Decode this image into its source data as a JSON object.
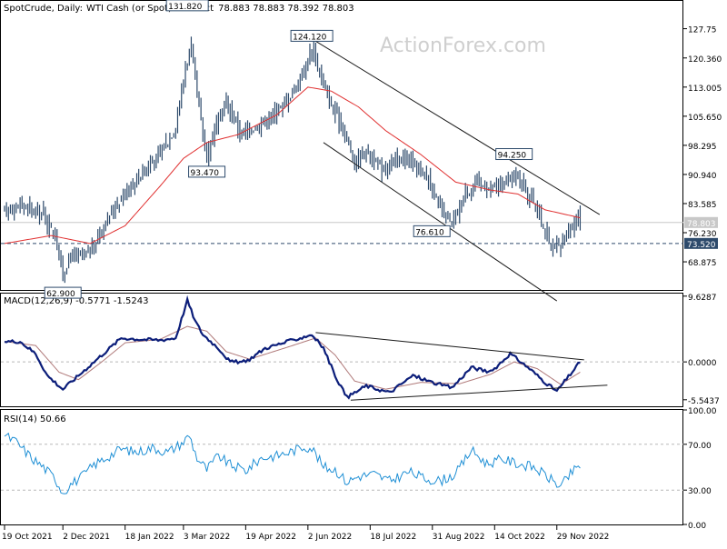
{
  "header": {
    "symbol": "SpotCrude, Daily:",
    "description": "WTI Cash (or Spot) Contract",
    "ohlc": "78.883 78.883 78.392 78.803"
  },
  "watermark": "ActionForex.com",
  "colors": {
    "price_bars": "#2d4a6b",
    "moving_average": "#e03030",
    "macd_line": "#0c1e7a",
    "signal_line": "#b07a7a",
    "rsi_line": "#1e8fd5",
    "grid": "#b8b8b8",
    "label_fill": "#2d4a6b"
  },
  "chart_data": [
    {
      "type": "line",
      "title": "SpotCrude, Daily: WTI Cash (or Spot) Contract",
      "x_dates": [
        "19 Oct 2021",
        "2 Dec 2021",
        "18 Jan 2022",
        "3 Mar 2022",
        "19 Apr 2022",
        "2 Jun 2022",
        "18 Jul 2022",
        "31 Aug 2022",
        "14 Oct 2022",
        "29 Nov 2022"
      ],
      "y_ticks": [
        "127.75",
        "120.360",
        "113.005",
        "105.650",
        "98.295",
        "90.940",
        "83.585",
        "76.230",
        "68.875"
      ],
      "ylim": [
        62.0,
        135.0
      ],
      "current_price": "78.803",
      "horizontal_level": "73.520",
      "price_labels": [
        {
          "text": "131.820",
          "price": 131.82,
          "date_index": 94
        },
        {
          "text": "124.120",
          "price": 124.12,
          "date_index": 158
        },
        {
          "text": "93.470",
          "price": 93.47,
          "date_index": 104
        },
        {
          "text": "94.250",
          "price": 94.25,
          "date_index": 262
        },
        {
          "text": "76.610",
          "price": 76.61,
          "date_index": 230
        },
        {
          "text": "62.900",
          "price": 62.9,
          "date_index": 30
        }
      ],
      "close_anchors": [
        [
          0,
          82
        ],
        [
          10,
          83
        ],
        [
          20,
          81
        ],
        [
          26,
          75
        ],
        [
          30,
          66
        ],
        [
          35,
          71
        ],
        [
          40,
          70
        ],
        [
          46,
          73
        ],
        [
          52,
          79
        ],
        [
          60,
          85
        ],
        [
          70,
          91
        ],
        [
          80,
          96
        ],
        [
          88,
          103
        ],
        [
          93,
          118
        ],
        [
          96,
          123
        ],
        [
          100,
          108
        ],
        [
          104,
          95
        ],
        [
          108,
          103
        ],
        [
          114,
          109
        ],
        [
          122,
          101
        ],
        [
          130,
          103
        ],
        [
          138,
          106
        ],
        [
          146,
          110
        ],
        [
          154,
          117
        ],
        [
          158,
          123
        ],
        [
          163,
          115
        ],
        [
          168,
          108
        ],
        [
          174,
          103
        ],
        [
          180,
          94
        ],
        [
          186,
          97
        ],
        [
          194,
          92
        ],
        [
          202,
          95
        ],
        [
          210,
          94
        ],
        [
          218,
          90
        ],
        [
          224,
          82
        ],
        [
          230,
          78
        ],
        [
          236,
          85
        ],
        [
          242,
          89
        ],
        [
          250,
          87
        ],
        [
          258,
          89
        ],
        [
          264,
          91
        ],
        [
          268,
          87
        ],
        [
          274,
          82
        ],
        [
          278,
          76
        ],
        [
          282,
          72
        ],
        [
          286,
          73
        ],
        [
          290,
          77
        ],
        [
          296,
          80
        ]
      ],
      "moving_average_anchors": [
        [
          0,
          73.5
        ],
        [
          24,
          75.5
        ],
        [
          44,
          73.5
        ],
        [
          62,
          78
        ],
        [
          80,
          88
        ],
        [
          92,
          95
        ],
        [
          104,
          99
        ],
        [
          120,
          101
        ],
        [
          140,
          106
        ],
        [
          156,
          113
        ],
        [
          168,
          112
        ],
        [
          182,
          108
        ],
        [
          196,
          102
        ],
        [
          214,
          96
        ],
        [
          232,
          89
        ],
        [
          250,
          87
        ],
        [
          264,
          86
        ],
        [
          278,
          82
        ],
        [
          296,
          80
        ]
      ],
      "channel_lines": [
        {
          "from": [
            158,
            125.2
          ],
          "to": [
            306,
            80.8
          ]
        },
        {
          "from": [
            164,
            99.0
          ],
          "to": [
            284,
            59.0
          ]
        }
      ]
    },
    {
      "type": "line",
      "title": "MACD(12,26,9) -0.5771 -1.5243",
      "y_ticks": [
        "9.6287",
        "0.0000",
        "-5.5437"
      ],
      "ylim": [
        -6.5,
        10.0
      ],
      "macd_anchors": [
        [
          0,
          3
        ],
        [
          8,
          3
        ],
        [
          16,
          1.2
        ],
        [
          22,
          -2
        ],
        [
          30,
          -4
        ],
        [
          38,
          -2
        ],
        [
          46,
          0
        ],
        [
          54,
          2
        ],
        [
          60,
          3.5
        ],
        [
          70,
          3.3
        ],
        [
          80,
          3.2
        ],
        [
          88,
          3.5
        ],
        [
          94,
          9
        ],
        [
          98,
          6
        ],
        [
          102,
          4
        ],
        [
          110,
          2
        ],
        [
          116,
          0
        ],
        [
          124,
          0
        ],
        [
          134,
          2
        ],
        [
          146,
          3
        ],
        [
          158,
          4
        ],
        [
          164,
          2
        ],
        [
          170,
          -2
        ],
        [
          176,
          -5.2
        ],
        [
          186,
          -3.5
        ],
        [
          198,
          -4.5
        ],
        [
          210,
          -2
        ],
        [
          220,
          -3
        ],
        [
          230,
          -3.8
        ],
        [
          240,
          -0.8
        ],
        [
          250,
          -1.5
        ],
        [
          260,
          1.2
        ],
        [
          270,
          -1
        ],
        [
          278,
          -3
        ],
        [
          284,
          -4.3
        ],
        [
          296,
          0
        ]
      ],
      "signal_anchors": [
        [
          0,
          3
        ],
        [
          16,
          2.4
        ],
        [
          28,
          -1.5
        ],
        [
          38,
          -2.6
        ],
        [
          50,
          0
        ],
        [
          62,
          2.8
        ],
        [
          80,
          3.3
        ],
        [
          94,
          5.2
        ],
        [
          104,
          4.5
        ],
        [
          114,
          1.5
        ],
        [
          126,
          0.4
        ],
        [
          146,
          2.2
        ],
        [
          160,
          3.5
        ],
        [
          170,
          1
        ],
        [
          180,
          -2.8
        ],
        [
          196,
          -4
        ],
        [
          214,
          -3
        ],
        [
          234,
          -3.2
        ],
        [
          250,
          -1.8
        ],
        [
          262,
          0
        ],
        [
          274,
          -1
        ],
        [
          286,
          -3.3
        ],
        [
          296,
          -1.5
        ]
      ],
      "trend_lines": [
        {
          "from": [
            160,
            4.3
          ],
          "to": [
            298,
            0.3
          ]
        },
        {
          "from": [
            178,
            -5.6
          ],
          "to": [
            310,
            -3.4
          ]
        }
      ]
    },
    {
      "type": "line",
      "title": "RSI(14) 50.66",
      "y_ticks": [
        "100.00",
        "70.00",
        "30.00",
        "0.00"
      ],
      "ylim": [
        0,
        100
      ],
      "levels": [
        70,
        30
      ],
      "rsi_anchors": [
        [
          0,
          78
        ],
        [
          6,
          72
        ],
        [
          14,
          58
        ],
        [
          20,
          50
        ],
        [
          26,
          40
        ],
        [
          30,
          28
        ],
        [
          34,
          35
        ],
        [
          40,
          42
        ],
        [
          46,
          52
        ],
        [
          54,
          60
        ],
        [
          60,
          66
        ],
        [
          68,
          63
        ],
        [
          76,
          67
        ],
        [
          84,
          63
        ],
        [
          92,
          72
        ],
        [
          95,
          78
        ],
        [
          99,
          58
        ],
        [
          104,
          48
        ],
        [
          110,
          60
        ],
        [
          116,
          52
        ],
        [
          124,
          47
        ],
        [
          132,
          58
        ],
        [
          140,
          60
        ],
        [
          148,
          64
        ],
        [
          154,
          68
        ],
        [
          158,
          67
        ],
        [
          164,
          50
        ],
        [
          170,
          48
        ],
        [
          176,
          37
        ],
        [
          182,
          42
        ],
        [
          190,
          44
        ],
        [
          198,
          38
        ],
        [
          208,
          46
        ],
        [
          216,
          40
        ],
        [
          224,
          38
        ],
        [
          232,
          44
        ],
        [
          240,
          65
        ],
        [
          248,
          53
        ],
        [
          256,
          57
        ],
        [
          264,
          53
        ],
        [
          272,
          50
        ],
        [
          278,
          43
        ],
        [
          286,
          33
        ],
        [
          292,
          46
        ],
        [
          296,
          51
        ]
      ]
    }
  ]
}
